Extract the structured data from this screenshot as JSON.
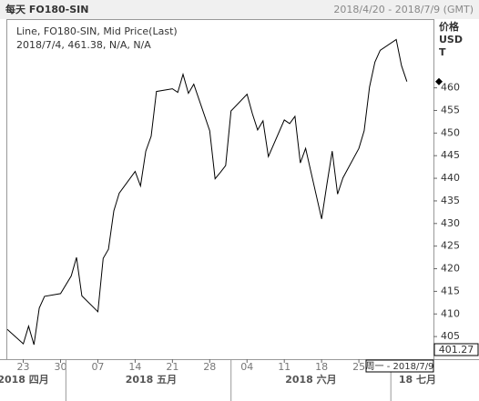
{
  "chart_data": {
    "type": "line",
    "title": "每天 FO180-SIN",
    "subtitle": "2018/4/20 - 2018/7/9 (GMT)",
    "legend_lines": [
      "Line, FO180-SIN, Mid Price(Last)",
      "2018/7/4, 461.38, N/A, N/A"
    ],
    "y_axis_label": [
      "价格",
      "USD",
      "T"
    ],
    "series": [
      {
        "name": "FO180-SIN",
        "color": "#000000",
        "x": [
          "2018-04-20",
          "2018-04-23",
          "2018-04-24",
          "2018-04-25",
          "2018-04-26",
          "2018-04-27",
          "2018-04-30",
          "2018-05-02",
          "2018-05-03",
          "2018-05-04",
          "2018-05-07",
          "2018-05-08",
          "2018-05-09",
          "2018-05-10",
          "2018-05-11",
          "2018-05-14",
          "2018-05-15",
          "2018-05-16",
          "2018-05-17",
          "2018-05-18",
          "2018-05-21",
          "2018-05-22",
          "2018-05-23",
          "2018-05-24",
          "2018-05-25",
          "2018-05-28",
          "2018-05-29",
          "2018-05-30",
          "2018-05-31",
          "2018-06-01",
          "2018-06-04",
          "2018-06-05",
          "2018-06-06",
          "2018-06-07",
          "2018-06-08",
          "2018-06-11",
          "2018-06-12",
          "2018-06-13",
          "2018-06-14",
          "2018-06-15",
          "2018-06-18",
          "2018-06-19",
          "2018-06-20",
          "2018-06-21",
          "2018-06-22",
          "2018-06-25",
          "2018-06-26",
          "2018-06-27",
          "2018-06-28",
          "2018-06-29",
          "2018-07-02",
          "2018-07-03",
          "2018-07-04"
        ],
        "values": [
          406.6,
          403.4,
          407.3,
          403.2,
          411.3,
          413.9,
          414.5,
          418.4,
          422.5,
          414.0,
          410.5,
          422.3,
          424.3,
          432.8,
          436.7,
          441.5,
          438.3,
          446.0,
          449.3,
          459.2,
          459.8,
          459.0,
          463.0,
          458.8,
          460.8,
          450.5,
          439.9,
          441.3,
          442.8,
          454.9,
          458.6,
          454.3,
          450.7,
          452.7,
          444.8,
          452.9,
          452.1,
          453.7,
          443.4,
          446.6,
          431.0,
          438.7,
          446.0,
          436.5,
          440.1,
          446.6,
          450.5,
          460.2,
          465.7,
          468.3,
          470.7,
          464.9,
          461.38
        ]
      }
    ],
    "xlim": [
      "2018-04-20",
      "2018-07-09"
    ],
    "xticks": [
      {
        "value": "2018-04-23",
        "label": "23"
      },
      {
        "value": "2018-04-30",
        "label": "30"
      },
      {
        "value": "2018-05-07",
        "label": "07"
      },
      {
        "value": "2018-05-14",
        "label": "14"
      },
      {
        "value": "2018-05-21",
        "label": "21"
      },
      {
        "value": "2018-05-28",
        "label": "28"
      },
      {
        "value": "2018-06-04",
        "label": "04"
      },
      {
        "value": "2018-06-11",
        "label": "11"
      },
      {
        "value": "2018-06-18",
        "label": "18"
      },
      {
        "value": "2018-06-25",
        "label": "25"
      }
    ],
    "month_labels": [
      {
        "value": "2018-04-23",
        "label": "2018 四月"
      },
      {
        "value": "2018-05-17",
        "label": "2018 五月"
      },
      {
        "value": "2018-06-16",
        "label": "2018 六月"
      },
      {
        "value": "2018-07-06",
        "label": "18 七月"
      }
    ],
    "month_starts": [
      "2018-05-01",
      "2018-06-01",
      "2018-07-01"
    ],
    "ylim": [
      400,
      475
    ],
    "yticks": [
      405,
      410,
      415,
      420,
      425,
      430,
      435,
      440,
      445,
      450,
      455,
      460
    ],
    "cursor_value": "401.27",
    "cursor_date": "周一 - 2018/7/9"
  }
}
